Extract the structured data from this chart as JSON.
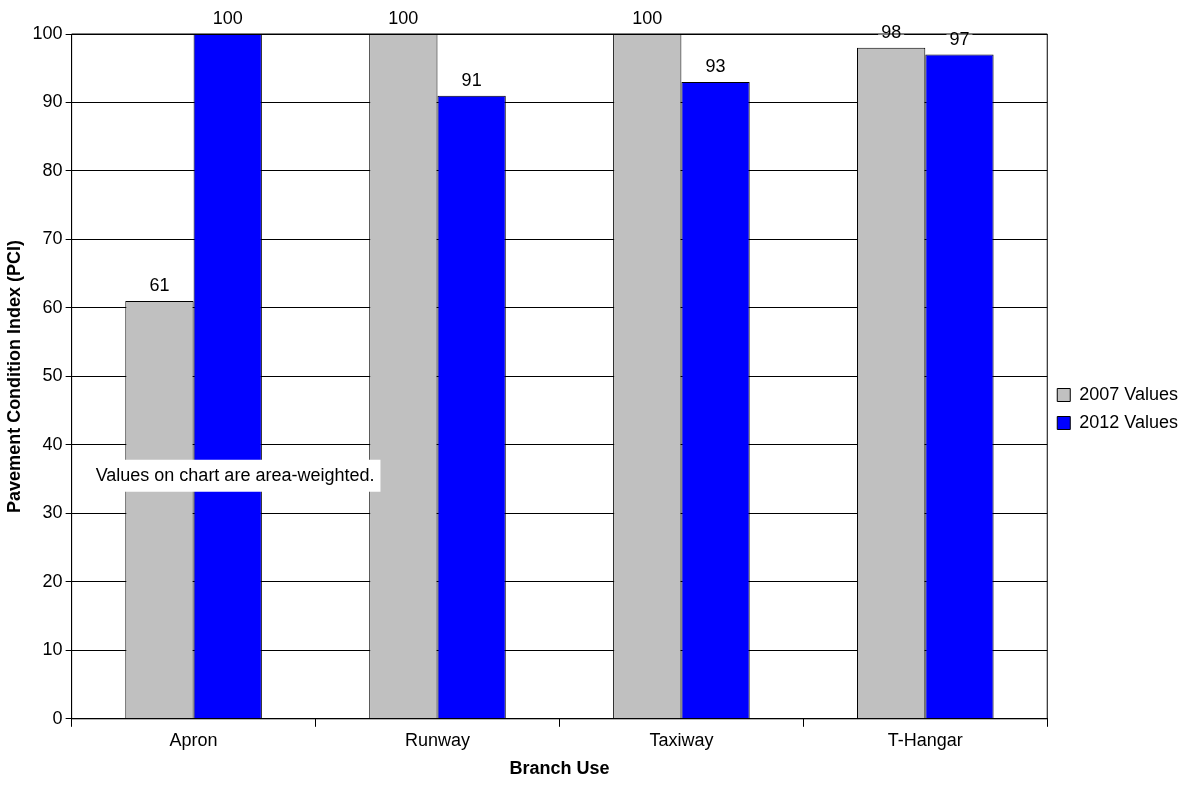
{
  "chart_data": {
    "type": "bar",
    "categories": [
      "Apron",
      "Runway",
      "Taxiway",
      "T-Hangar"
    ],
    "series": [
      {
        "name": "2007 Values",
        "color": "#c0c0c0",
        "values": [
          61,
          100,
          100,
          98
        ]
      },
      {
        "name": "2012 Values",
        "color": "#0000ff",
        "values": [
          100,
          91,
          93,
          97
        ]
      }
    ],
    "xlabel": "Branch Use",
    "ylabel": "Pavement Condition Index (PCI)",
    "ylim": [
      0,
      100
    ],
    "yticks": [
      0,
      10,
      20,
      30,
      40,
      50,
      60,
      70,
      80,
      90,
      100
    ],
    "grid": "y",
    "legend": "right",
    "data_labels": true,
    "annotations": [
      "Values on chart are area-weighted."
    ]
  }
}
